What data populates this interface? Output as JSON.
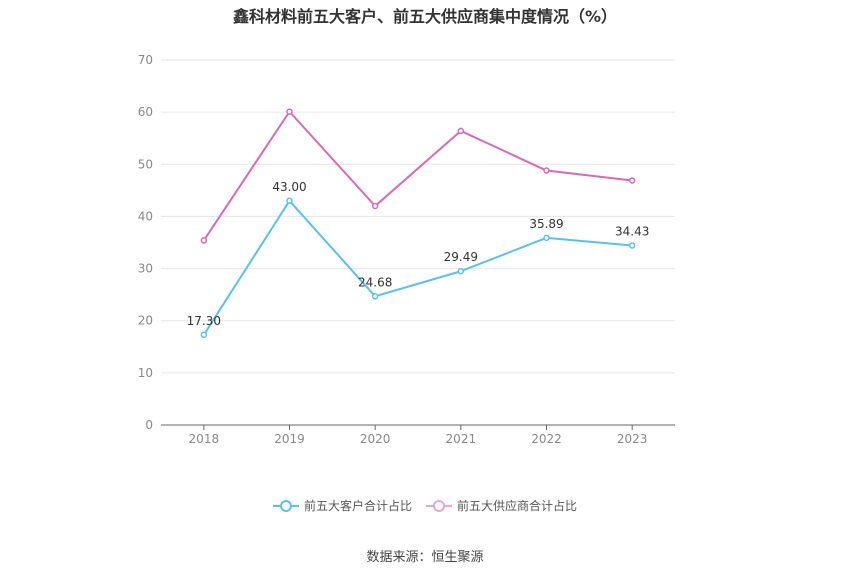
{
  "chart_data": {
    "type": "line",
    "title": "鑫科材料前五大客户、前五大供应商集中度情况（%）",
    "categories": [
      "2018",
      "2019",
      "2020",
      "2021",
      "2022",
      "2023"
    ],
    "ylim": [
      0,
      70
    ],
    "yticks": [
      "0",
      "10",
      "20",
      "30",
      "40",
      "50",
      "60",
      "70"
    ],
    "grid": true,
    "legend_position": "bottom",
    "series": [
      {
        "name": "前五大客户合计占比",
        "color": "#5bc0eb",
        "values": [
          17.3,
          43.0,
          24.68,
          29.49,
          35.89,
          34.43
        ],
        "labels": [
          "17.30",
          "43.00",
          "24.68",
          "29.49",
          "35.89",
          "34.43"
        ]
      },
      {
        "name": "前五大供应商合计占比",
        "color": "#d66bb5",
        "values": [
          35.4,
          60.1,
          42.0,
          56.4,
          48.8,
          46.9
        ]
      }
    ]
  },
  "source": "数据来源：恒生聚源"
}
